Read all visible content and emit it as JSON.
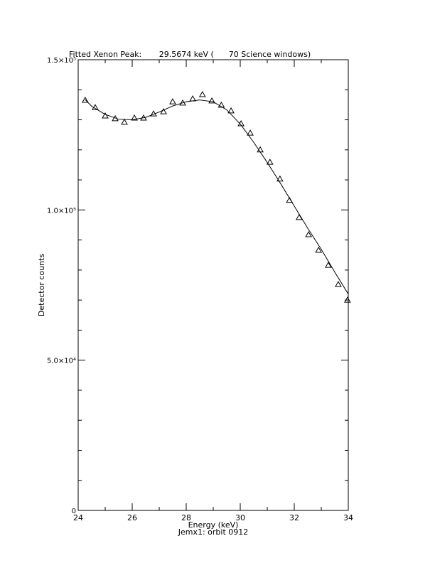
{
  "chart_data": {
    "type": "scatter",
    "title": "Fitted Xenon Peak:       29.5674 keV (      70 Science windows)",
    "x_label": "Energy (keV)",
    "subtitle": "Jemx1: orbit 0912",
    "y_label": "Detector counts",
    "xlim": [
      24,
      34
    ],
    "xticks": [
      24,
      26,
      28,
      30,
      32,
      34
    ],
    "xticks_minor": [
      25,
      27,
      29,
      31,
      33
    ],
    "ylim": [
      0,
      150000
    ],
    "yticks": [
      0,
      {
        "value": 50000,
        "label": "5.0×10⁴"
      },
      {
        "value": 100000,
        "label": "1.0×10⁵"
      },
      {
        "value": 150000,
        "label": "1.5×10⁵"
      }
    ],
    "yticks_minor": [
      10000,
      20000,
      30000,
      40000,
      60000,
      70000,
      80000,
      90000,
      110000,
      120000,
      130000,
      140000
    ],
    "color": "#000000",
    "series": [
      {
        "name": "data",
        "marker": "triangle",
        "x": [
          24.26,
          24.63,
          25.0,
          25.37,
          25.71,
          26.08,
          26.42,
          26.79,
          27.16,
          27.5,
          27.87,
          28.24,
          28.6,
          28.95,
          29.3,
          29.66,
          30.03,
          30.37,
          30.74,
          31.1,
          31.47,
          31.82,
          32.18,
          32.53,
          32.9,
          33.26,
          33.63,
          33.97
        ],
        "values": [
          136500,
          134100,
          131300,
          130400,
          129200,
          130600,
          130600,
          132000,
          132700,
          136000,
          135600,
          137000,
          138400,
          136300,
          134900,
          133000,
          128700,
          125600,
          120000,
          115900,
          110300,
          103200,
          97500,
          91800,
          86600,
          81600,
          75200,
          70000
        ]
      },
      {
        "name": "fit",
        "marker": "line",
        "x": [
          24.25,
          24.5,
          25,
          25.5,
          26,
          26.5,
          27,
          27.5,
          28,
          28.5,
          29,
          29.5,
          30,
          30.5,
          31,
          31.5,
          32,
          32.5,
          33,
          33.5,
          34
        ],
        "values": [
          136800,
          134500,
          131800,
          130200,
          130000,
          130800,
          132600,
          134600,
          136000,
          136600,
          136000,
          133300,
          128600,
          122500,
          115800,
          108700,
          101300,
          93900,
          86900,
          79300,
          72000
        ]
      }
    ]
  }
}
